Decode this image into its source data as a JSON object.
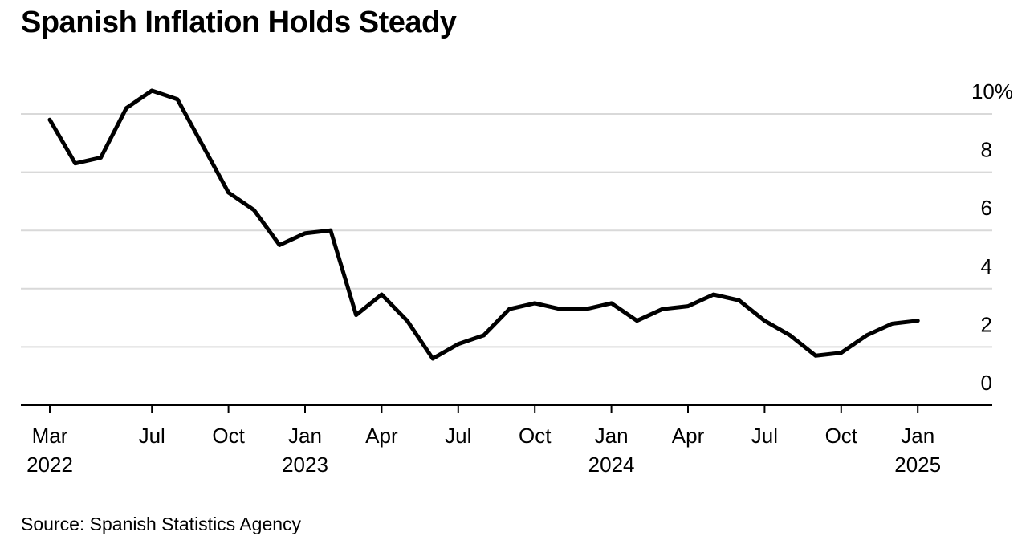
{
  "title": "Spanish Inflation Holds Steady",
  "source": "Source: Spanish Statistics Agency",
  "chart_data": {
    "type": "line",
    "title": "Spanish Inflation Holds Steady",
    "xlabel": "",
    "ylabel": "",
    "y_unit_label": "%",
    "ylim": [
      0,
      10
    ],
    "y_ticks": [
      0,
      2,
      4,
      6,
      8,
      10
    ],
    "y_tick_labels": [
      "0",
      "2",
      "4",
      "6",
      "8",
      "10%"
    ],
    "grid": "horizontal",
    "x_ticks": [
      {
        "date": "2022-03",
        "label": "Mar",
        "year": "2022"
      },
      {
        "date": "2022-07",
        "label": "Jul",
        "year": ""
      },
      {
        "date": "2022-10",
        "label": "Oct",
        "year": ""
      },
      {
        "date": "2023-01",
        "label": "Jan",
        "year": "2023"
      },
      {
        "date": "2023-04",
        "label": "Apr",
        "year": ""
      },
      {
        "date": "2023-07",
        "label": "Jul",
        "year": ""
      },
      {
        "date": "2023-10",
        "label": "Oct",
        "year": ""
      },
      {
        "date": "2024-01",
        "label": "Jan",
        "year": "2024"
      },
      {
        "date": "2024-04",
        "label": "Apr",
        "year": ""
      },
      {
        "date": "2024-07",
        "label": "Jul",
        "year": ""
      },
      {
        "date": "2024-10",
        "label": "Oct",
        "year": ""
      },
      {
        "date": "2025-01",
        "label": "Jan",
        "year": "2025"
      }
    ],
    "x_range": [
      "2022-02",
      "2025-04"
    ],
    "series": [
      {
        "color": "#000000",
        "points": [
          {
            "x": "2022-03",
            "y": 9.8
          },
          {
            "x": "2022-04",
            "y": 8.3
          },
          {
            "x": "2022-05",
            "y": 8.5
          },
          {
            "x": "2022-06",
            "y": 10.2
          },
          {
            "x": "2022-07",
            "y": 10.8
          },
          {
            "x": "2022-08",
            "y": 10.5
          },
          {
            "x": "2022-09",
            "y": 8.9
          },
          {
            "x": "2022-10",
            "y": 7.3
          },
          {
            "x": "2022-11",
            "y": 6.7
          },
          {
            "x": "2022-12",
            "y": 5.5
          },
          {
            "x": "2023-01",
            "y": 5.9
          },
          {
            "x": "2023-02",
            "y": 6.0
          },
          {
            "x": "2023-03",
            "y": 3.1
          },
          {
            "x": "2023-04",
            "y": 3.8
          },
          {
            "x": "2023-05",
            "y": 2.9
          },
          {
            "x": "2023-06",
            "y": 1.6
          },
          {
            "x": "2023-07",
            "y": 2.1
          },
          {
            "x": "2023-08",
            "y": 2.4
          },
          {
            "x": "2023-09",
            "y": 3.3
          },
          {
            "x": "2023-10",
            "y": 3.5
          },
          {
            "x": "2023-11",
            "y": 3.3
          },
          {
            "x": "2023-12",
            "y": 3.3
          },
          {
            "x": "2024-01",
            "y": 3.5
          },
          {
            "x": "2024-02",
            "y": 2.9
          },
          {
            "x": "2024-03",
            "y": 3.3
          },
          {
            "x": "2024-04",
            "y": 3.4
          },
          {
            "x": "2024-05",
            "y": 3.8
          },
          {
            "x": "2024-06",
            "y": 3.6
          },
          {
            "x": "2024-07",
            "y": 2.9
          },
          {
            "x": "2024-08",
            "y": 2.4
          },
          {
            "x": "2024-09",
            "y": 1.7
          },
          {
            "x": "2024-10",
            "y": 1.8
          },
          {
            "x": "2024-11",
            "y": 2.4
          },
          {
            "x": "2024-12",
            "y": 2.8
          },
          {
            "x": "2025-01",
            "y": 2.9
          }
        ]
      }
    ]
  }
}
